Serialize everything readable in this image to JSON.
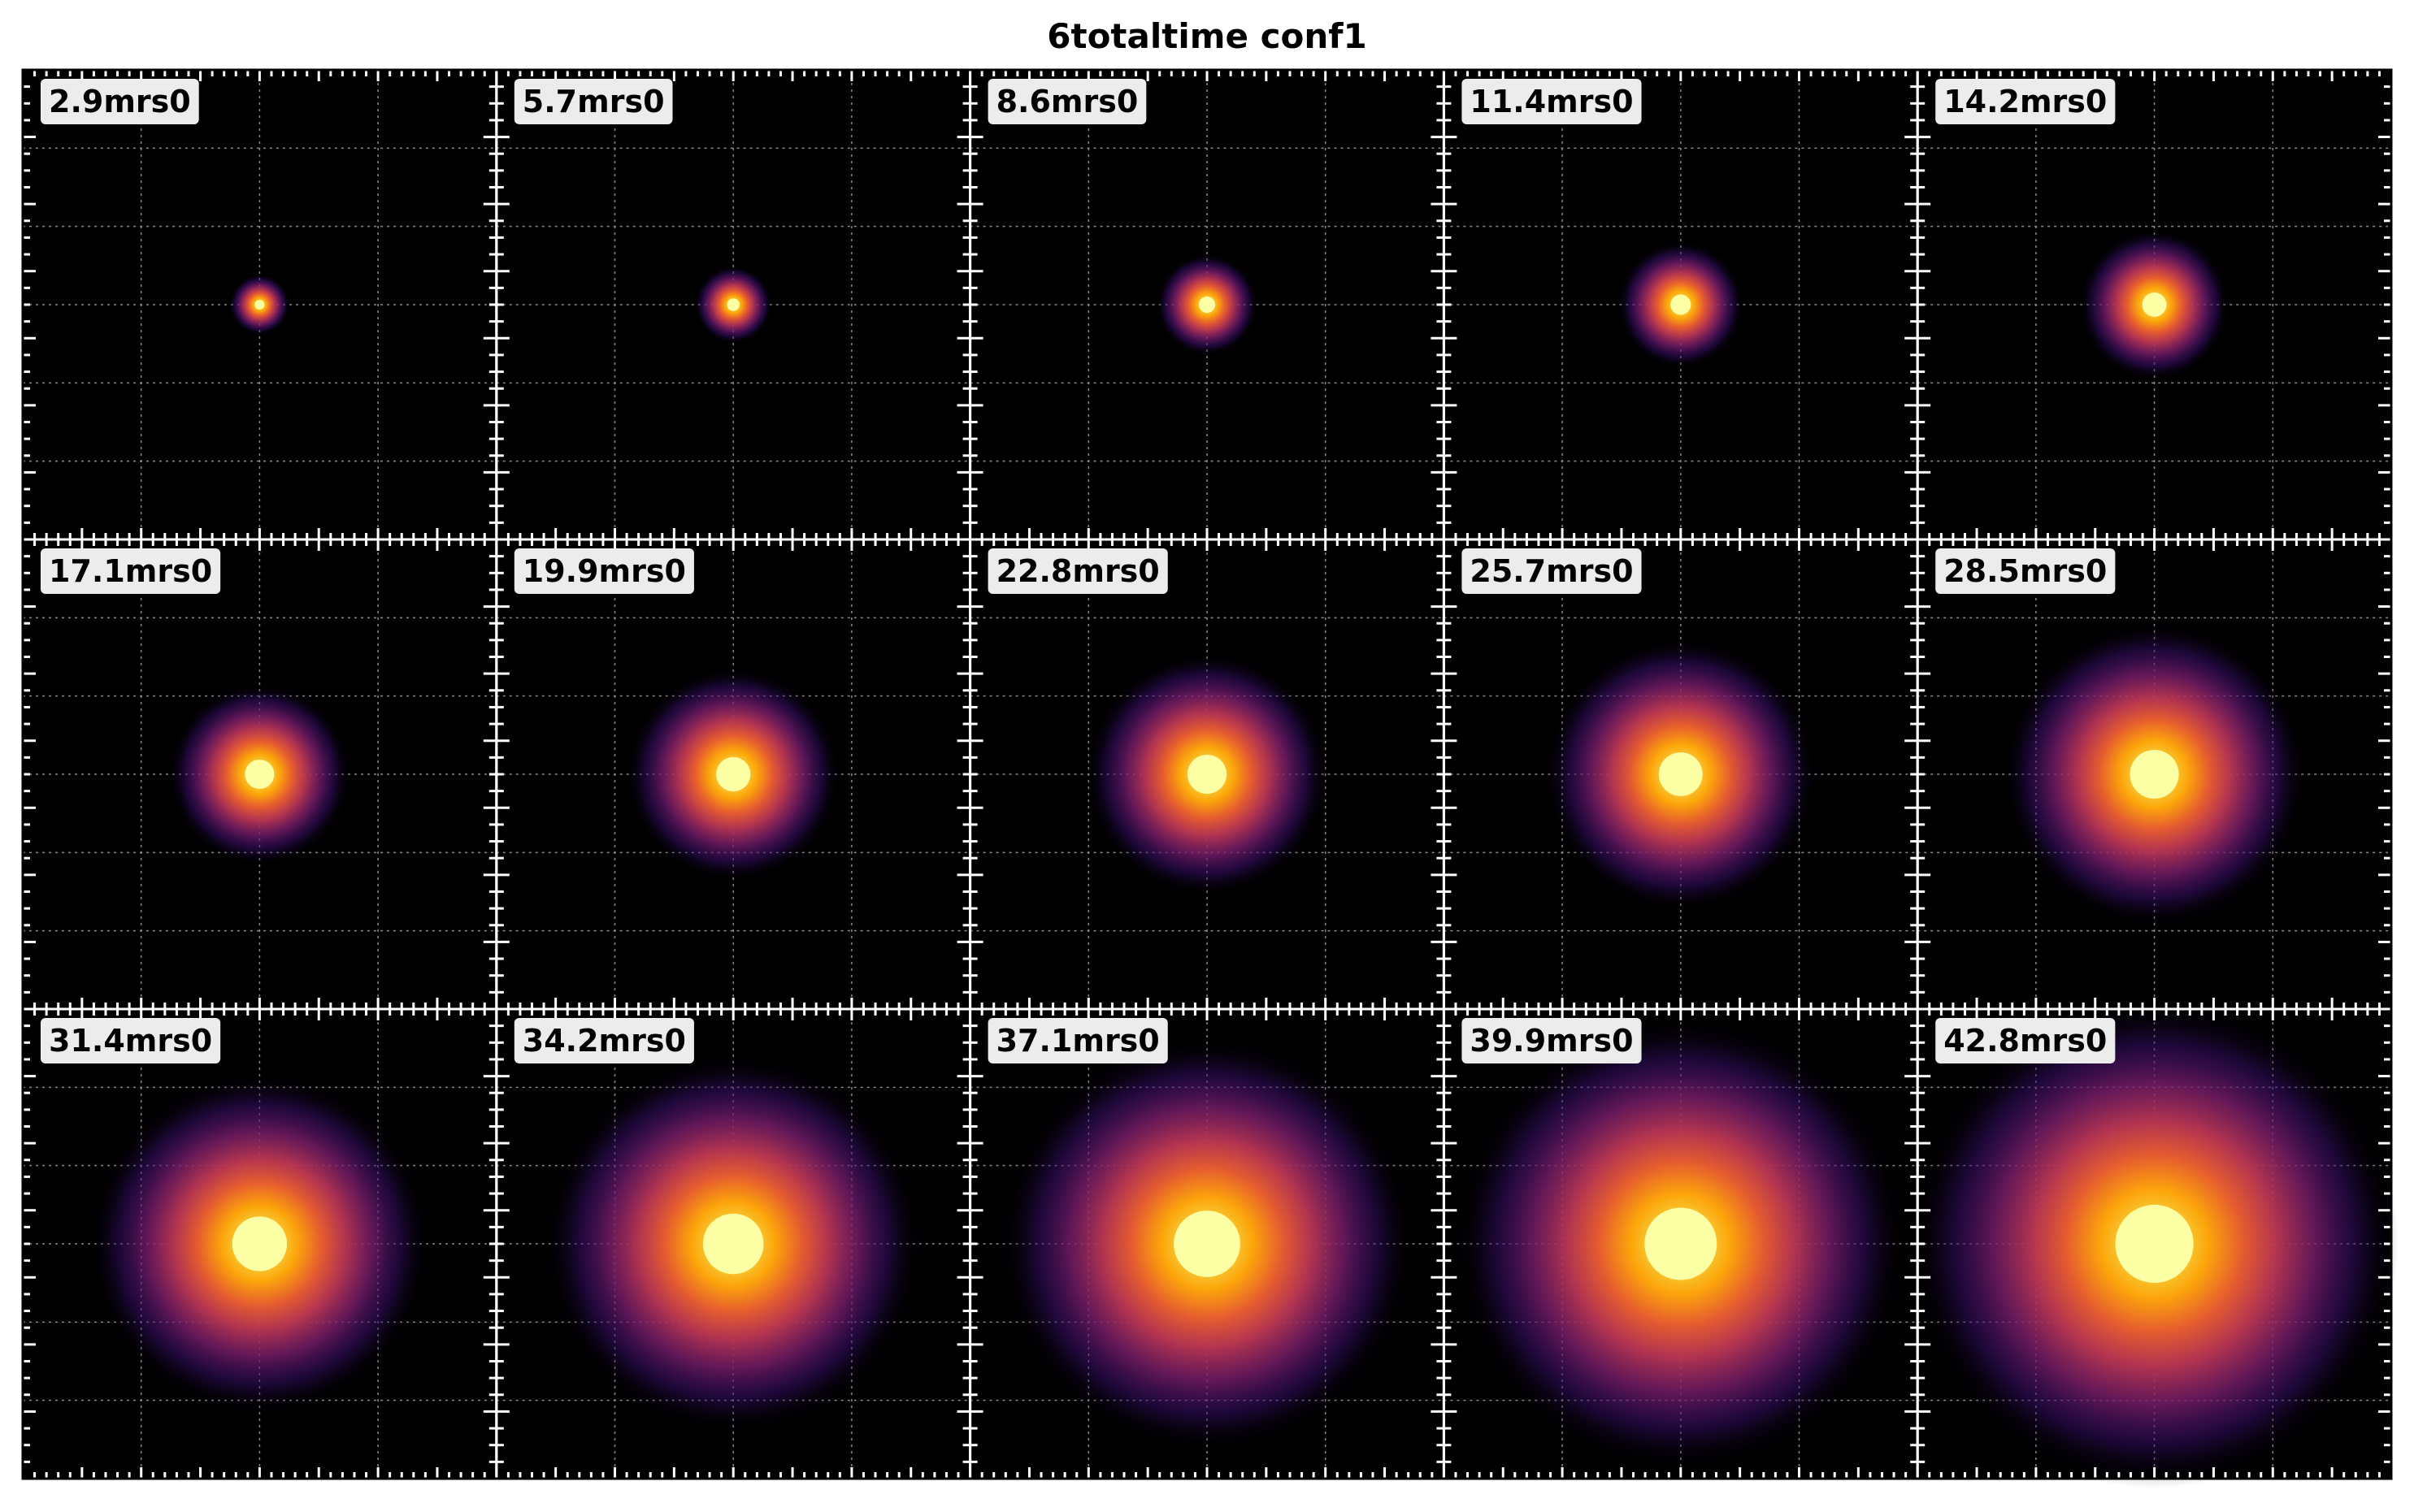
{
  "figure": {
    "title": "6totaltime conf1"
  },
  "colors": {
    "background": "#000000",
    "frame": "#ffffff",
    "grid": "#8a8a8a",
    "label_box": "#ececec",
    "colormap": "inferno"
  },
  "chart_data": {
    "type": "heatmap",
    "layout": {
      "rows": 3,
      "cols": 5
    },
    "colormap": "inferno",
    "grid": true,
    "panels": [
      {
        "label": "2.9mrs0",
        "center_x": 0.5,
        "center_y": 0.5,
        "spread": 0.025
      },
      {
        "label": "5.7mrs0",
        "center_x": 0.5,
        "center_y": 0.5,
        "spread": 0.032
      },
      {
        "label": "8.6mrs0",
        "center_x": 0.5,
        "center_y": 0.5,
        "spread": 0.042
      },
      {
        "label": "11.4mrs0",
        "center_x": 0.5,
        "center_y": 0.5,
        "spread": 0.052
      },
      {
        "label": "14.2mrs0",
        "center_x": 0.5,
        "center_y": 0.5,
        "spread": 0.062
      },
      {
        "label": "17.1mrs0",
        "center_x": 0.5,
        "center_y": 0.5,
        "spread": 0.075
      },
      {
        "label": "19.9mrs0",
        "center_x": 0.5,
        "center_y": 0.5,
        "spread": 0.088
      },
      {
        "label": "22.8mrs0",
        "center_x": 0.5,
        "center_y": 0.5,
        "spread": 0.1
      },
      {
        "label": "25.7mrs0",
        "center_x": 0.5,
        "center_y": 0.5,
        "spread": 0.112
      },
      {
        "label": "28.5mrs0",
        "center_x": 0.5,
        "center_y": 0.5,
        "spread": 0.125
      },
      {
        "label": "31.4mrs0",
        "center_x": 0.5,
        "center_y": 0.5,
        "spread": 0.14
      },
      {
        "label": "34.2mrs0",
        "center_x": 0.5,
        "center_y": 0.5,
        "spread": 0.155
      },
      {
        "label": "37.1mrs0",
        "center_x": 0.5,
        "center_y": 0.5,
        "spread": 0.17
      },
      {
        "label": "39.9mrs0",
        "center_x": 0.5,
        "center_y": 0.5,
        "spread": 0.185
      },
      {
        "label": "42.8mrs0",
        "center_x": 0.5,
        "center_y": 0.5,
        "spread": 0.2
      }
    ]
  }
}
